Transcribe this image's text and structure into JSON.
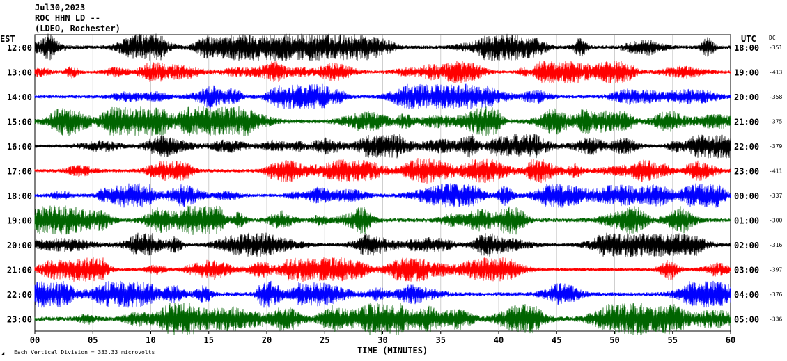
{
  "header": {
    "line1": "Jul30,2023",
    "line2": "ROC HHN LD --",
    "line3": "(LDEO, Rochester)"
  },
  "left_axis_label": "EST",
  "right_axis_label": "UTC",
  "dc_label": "DC",
  "footer_note": "Each Vertical Division =  333.33 microvolts",
  "chart_data": {
    "type": "line",
    "xlabel": "TIME (MINUTES)",
    "xlim": [
      0,
      60
    ],
    "x_ticks": [
      "00",
      "05",
      "10",
      "15",
      "20",
      "25",
      "30",
      "35",
      "40",
      "45",
      "50",
      "55",
      "60"
    ],
    "rows": [
      {
        "est": "12:00",
        "utc": "18:00",
        "dc": "-351",
        "color": "#000000",
        "amp": 1.0
      },
      {
        "est": "13:00",
        "utc": "19:00",
        "dc": "-413",
        "color": "#ff0000",
        "amp": 0.85
      },
      {
        "est": "14:00",
        "utc": "20:00",
        "dc": "-358",
        "color": "#0000ff",
        "amp": 0.95
      },
      {
        "est": "15:00",
        "utc": "21:00",
        "dc": "-375",
        "color": "#006400",
        "amp": 1.1
      },
      {
        "est": "16:00",
        "utc": "22:00",
        "dc": "-379",
        "color": "#000000",
        "amp": 0.9
      },
      {
        "est": "17:00",
        "utc": "23:00",
        "dc": "-411",
        "color": "#ff0000",
        "amp": 0.95
      },
      {
        "est": "18:00",
        "utc": "00:00",
        "dc": "-337",
        "color": "#0000ff",
        "amp": 0.9
      },
      {
        "est": "19:00",
        "utc": "01:00",
        "dc": "-300",
        "color": "#006400",
        "amp": 1.1
      },
      {
        "est": "20:00",
        "utc": "02:00",
        "dc": "-316",
        "color": "#000000",
        "amp": 0.9
      },
      {
        "est": "21:00",
        "utc": "03:00",
        "dc": "-397",
        "color": "#ff0000",
        "amp": 0.9
      },
      {
        "est": "22:00",
        "utc": "04:00",
        "dc": "-376",
        "color": "#0000ff",
        "amp": 1.0
      },
      {
        "est": "23:00",
        "utc": "05:00",
        "dc": "-336",
        "color": "#006400",
        "amp": 1.2
      }
    ]
  }
}
